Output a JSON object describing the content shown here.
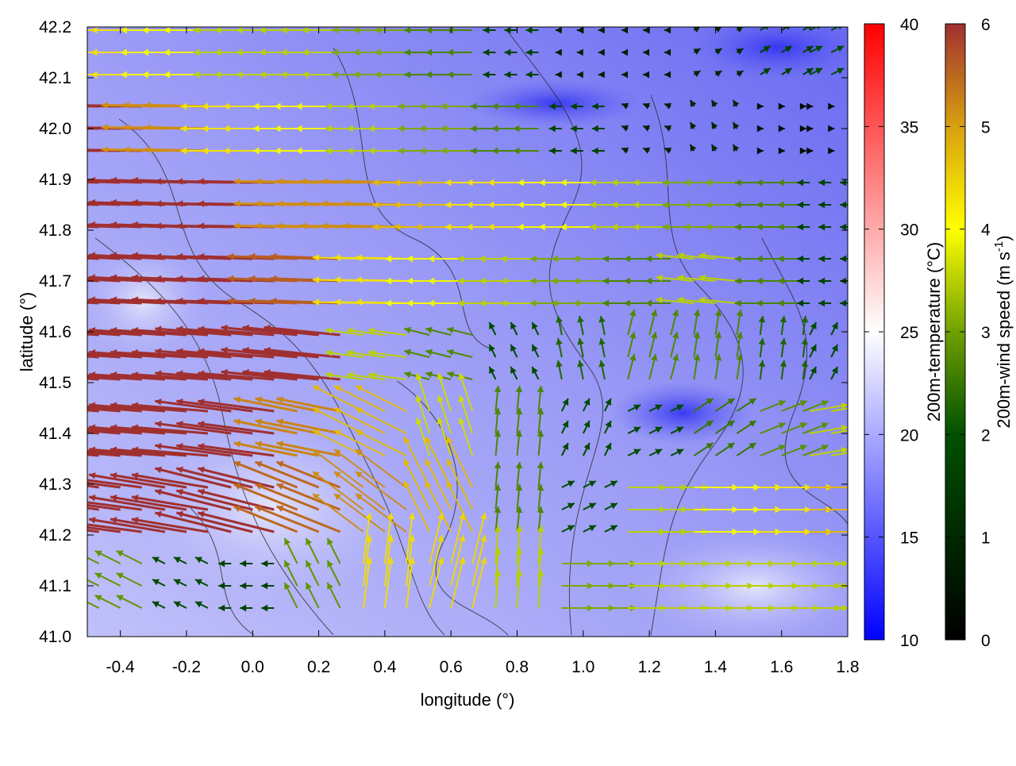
{
  "chart_data": {
    "type": "vector-field",
    "xlabel": "longitude (°)",
    "ylabel": "latitude (°)",
    "xlim": [
      -0.5,
      1.8
    ],
    "ylim": [
      41.0,
      42.2
    ],
    "xticks": [
      "-0.4",
      "-0.2",
      "0.0",
      "0.2",
      "0.4",
      "0.6",
      "0.8",
      "1.0",
      "1.2",
      "1.4",
      "1.6",
      "1.8"
    ],
    "xtick_values": [
      -0.4,
      -0.2,
      0.0,
      0.2,
      0.4,
      0.6,
      0.8,
      1.0,
      1.2,
      1.4,
      1.6,
      1.8
    ],
    "yticks": [
      "41.0",
      "41.1",
      "41.2",
      "41.3",
      "41.4",
      "41.5",
      "41.6",
      "41.7",
      "41.8",
      "41.9",
      "42.0",
      "42.1",
      "42.2"
    ],
    "ytick_values": [
      41.0,
      41.1,
      41.2,
      41.3,
      41.4,
      41.5,
      41.6,
      41.7,
      41.8,
      41.9,
      42.0,
      42.1,
      42.2
    ],
    "temperature_colorbar": {
      "label": "200m-temperature (°C)",
      "range": [
        10,
        40
      ],
      "ticks": [
        "10",
        "15",
        "20",
        "25",
        "30",
        "35",
        "40"
      ],
      "tick_values": [
        10,
        15,
        20,
        25,
        30,
        35,
        40
      ],
      "colors": [
        "#0000ff",
        "#ffffff",
        "#ff0000"
      ]
    },
    "wind_colorbar": {
      "label": "200m-wind speed (m s",
      "label_sup": "-1",
      "label_end": ")",
      "range": [
        0,
        6
      ],
      "ticks": [
        "0",
        "1",
        "2",
        "3",
        "4",
        "5",
        "6"
      ],
      "tick_values": [
        0,
        1,
        2,
        3,
        4,
        5,
        6
      ],
      "colors": [
        "#000000",
        "#005000",
        "#70a000",
        "#ffff00",
        "#d8a010",
        "#a03030"
      ]
    },
    "grid_lon": [
      -0.4,
      -0.2,
      0.0,
      0.2,
      0.4,
      0.6,
      0.8,
      1.0,
      1.2,
      1.4,
      1.6,
      1.75
    ],
    "grid_lat": [
      42.15,
      42.0,
      41.85,
      41.7,
      41.55,
      41.4,
      41.25,
      41.1
    ],
    "u": [
      [
        -4,
        -3.5,
        -3,
        -3,
        -2.5,
        -2,
        -1,
        -0.5,
        -0.5,
        0.5,
        0.8,
        1
      ],
      [
        -6,
        -5,
        -4,
        -3.5,
        -3,
        -2.5,
        -2,
        -1,
        -0.5,
        -0.3,
        0.2,
        0.2
      ],
      [
        -6,
        -6,
        -6,
        -5,
        -5,
        -4.5,
        -4,
        -3.5,
        -3,
        -2.5,
        -2,
        -1
      ],
      [
        -6,
        -6,
        -6,
        -5.5,
        -4,
        -3.5,
        -3,
        -2.5,
        -2,
        -3,
        -2,
        -1
      ],
      [
        -6,
        -6,
        -6,
        -6,
        -3,
        -2,
        -0.5,
        -0.3,
        0.5,
        0.3,
        0.2,
        0.5
      ],
      [
        -6,
        -6,
        -6,
        -5,
        -4,
        -1,
        0.2,
        0.5,
        1,
        1.5,
        2,
        3
      ],
      [
        -6,
        -6,
        -6,
        -5,
        -4,
        -2,
        0.2,
        1,
        3,
        3.5,
        4,
        4.5
      ],
      [
        -2,
        -1,
        -1,
        -1,
        0.5,
        1,
        0.2,
        2.5,
        3,
        3,
        3,
        3
      ]
    ],
    "v": [
      [
        0,
        0,
        0,
        0,
        0,
        0,
        0,
        0,
        0,
        0.3,
        0.5,
        0.5
      ],
      [
        0.1,
        0.1,
        0,
        0,
        0,
        0,
        0,
        0,
        0.2,
        0.5,
        0,
        0
      ],
      [
        0.2,
        0.2,
        0.1,
        0.1,
        0.1,
        0,
        0,
        0,
        0,
        0,
        0,
        0
      ],
      [
        0.3,
        0.3,
        0.2,
        0.2,
        0.1,
        0,
        0,
        0,
        0,
        0.3,
        0,
        0
      ],
      [
        0.4,
        0.4,
        0.5,
        0.6,
        0.4,
        0.5,
        1,
        1.5,
        2,
        2,
        1.5,
        1
      ],
      [
        0.5,
        0.5,
        0.8,
        1,
        2,
        3,
        2,
        1,
        0.5,
        1,
        0.8,
        0.5
      ],
      [
        0.8,
        1,
        1.5,
        2,
        3,
        4,
        2,
        0.5,
        0,
        0,
        0,
        0
      ],
      [
        1,
        0.5,
        0,
        2,
        4,
        4,
        3,
        0,
        0,
        0,
        0,
        0
      ]
    ],
    "contour_levels": "terrain (black lines)"
  }
}
